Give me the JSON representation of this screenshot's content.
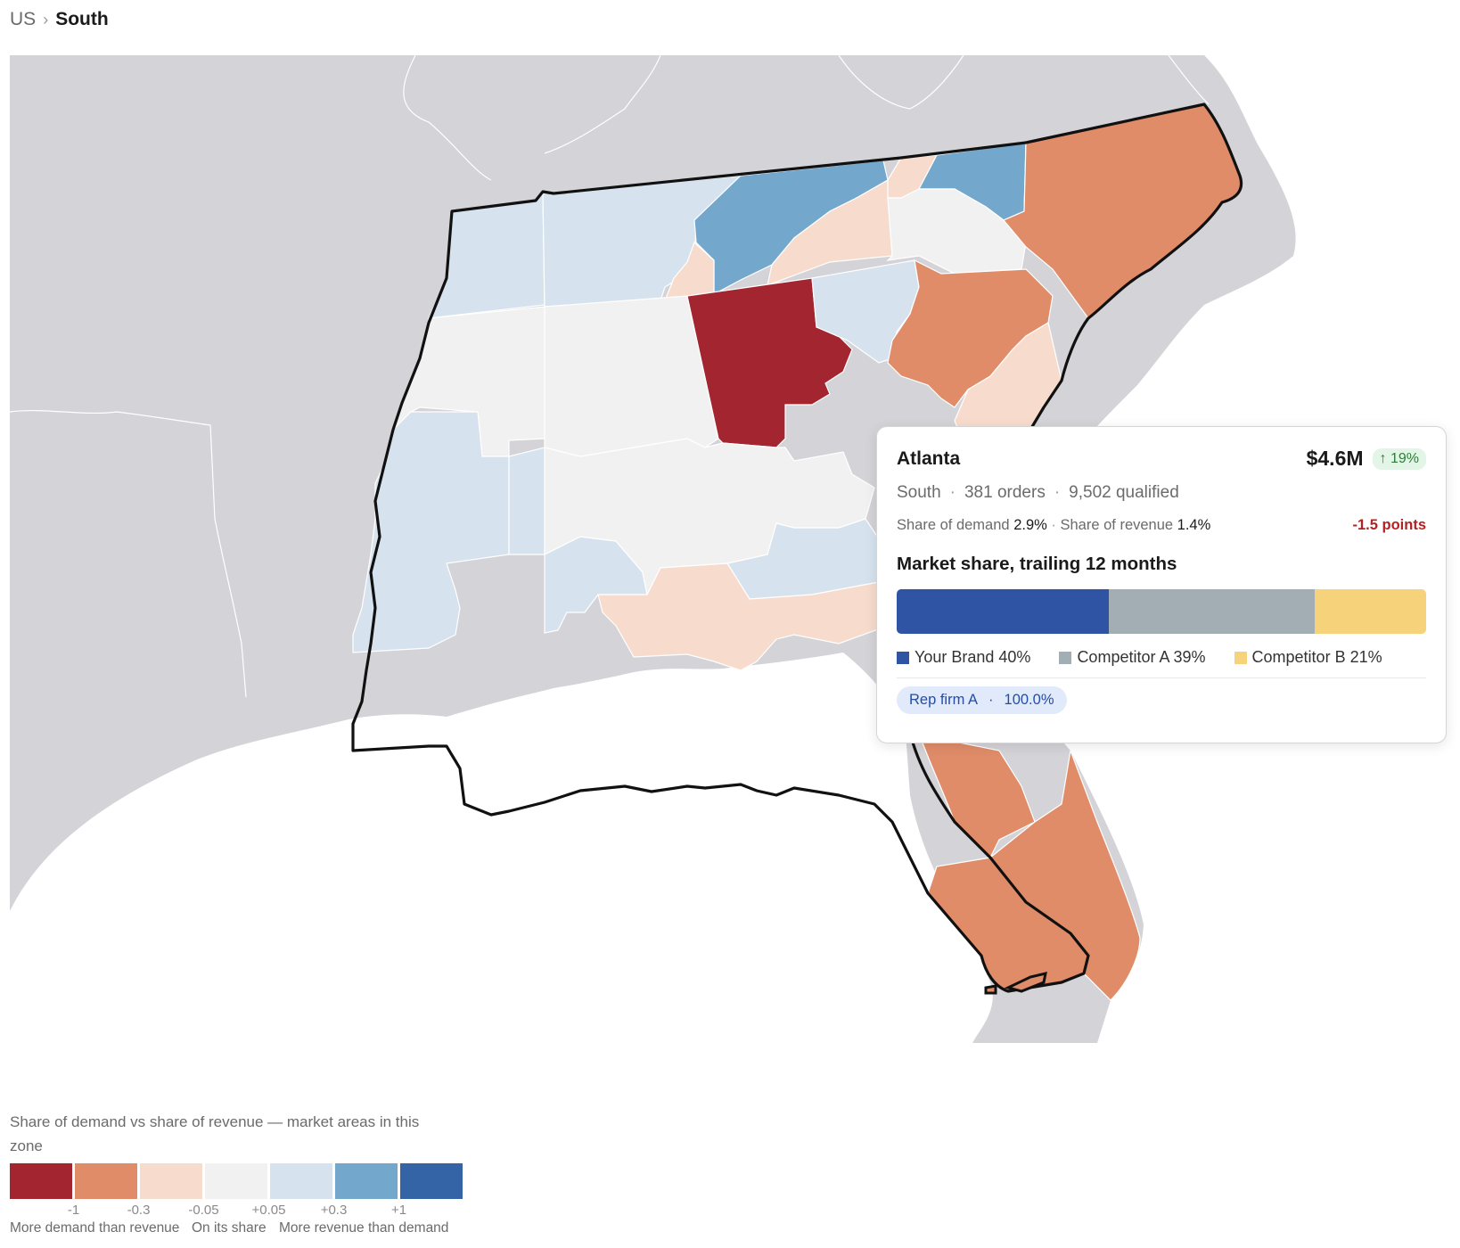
{
  "breadcrumb": {
    "root": "US",
    "separator": "›",
    "current": "South"
  },
  "map": {
    "colors": {
      "land": "#d4d3d7",
      "water": "#ffffff",
      "zone_outline": "#111111",
      "state_border": "#ffffff"
    },
    "areas": [
      {
        "id": "tn-west",
        "category": "+0.05"
      },
      {
        "id": "tn-middle",
        "category": "+0.05"
      },
      {
        "id": "tn-east",
        "category": "+0.3"
      },
      {
        "id": "tn-east-fringe",
        "category": "-0.3"
      },
      {
        "id": "va-south",
        "category": "-0.3"
      },
      {
        "id": "va-east",
        "category": "+0.3"
      },
      {
        "id": "nc-piedmont",
        "category": "-0.05"
      },
      {
        "id": "nc-east",
        "category": "-1"
      },
      {
        "id": "ms-north",
        "category": "-0.05"
      },
      {
        "id": "al-north",
        "category": "-0.05"
      },
      {
        "id": "atlanta",
        "category": "-1.5"
      },
      {
        "id": "sc-upstate",
        "category": "+0.05"
      },
      {
        "id": "sc-midlands",
        "category": "-1"
      },
      {
        "id": "sc-coast",
        "category": "-0.3"
      },
      {
        "id": "ms-south",
        "category": "+0.05"
      },
      {
        "id": "al-south",
        "category": "+0.05"
      },
      {
        "id": "ga-south",
        "category": "+0.05"
      },
      {
        "id": "ga-middle",
        "category": "-0.05"
      },
      {
        "id": "panhandle",
        "category": "-0.3"
      },
      {
        "id": "fl-north",
        "category": "-1"
      },
      {
        "id": "fl-peninsula",
        "category": "-1"
      }
    ]
  },
  "tooltip": {
    "title": "Atlanta",
    "value": "$4.6M",
    "delta": "↑ 19%",
    "region": "South",
    "orders": "381 orders",
    "qualified": "9,502 qualified",
    "meta_separator": "·",
    "share_demand_label": "Share of demand",
    "share_demand_value": "2.9%",
    "share_separator": "·",
    "share_revenue_label": "Share of revenue",
    "share_revenue_value": "1.4%",
    "points": "-1.5 points",
    "market_share_title": "Market share, trailing 12 months",
    "market_share": [
      {
        "label": "Your Brand 40%",
        "value": 40,
        "color": "#2f54a4"
      },
      {
        "label": "Competitor A 39%",
        "value": 39,
        "color": "#a2aeb4"
      },
      {
        "label": "Competitor B 21%",
        "value": 21,
        "color": "#f6d27a"
      }
    ],
    "rep_firm": "Rep firm A",
    "rep_separator": "·",
    "rep_share": "100.0%"
  },
  "legend": {
    "title": "Share of demand vs share of revenue — market areas in this zone",
    "colors": [
      "#a32530",
      "#e08c69",
      "#f7dccd",
      "#f1f1f1",
      "#d6e3ef",
      "#74a7cc",
      "#3463a6"
    ],
    "ticks": [
      "-1",
      "-0.3",
      "-0.05",
      "+0.05",
      "+0.3",
      "+1"
    ],
    "captions": [
      "More demand than revenue",
      "On its share",
      "More revenue than demand"
    ]
  }
}
